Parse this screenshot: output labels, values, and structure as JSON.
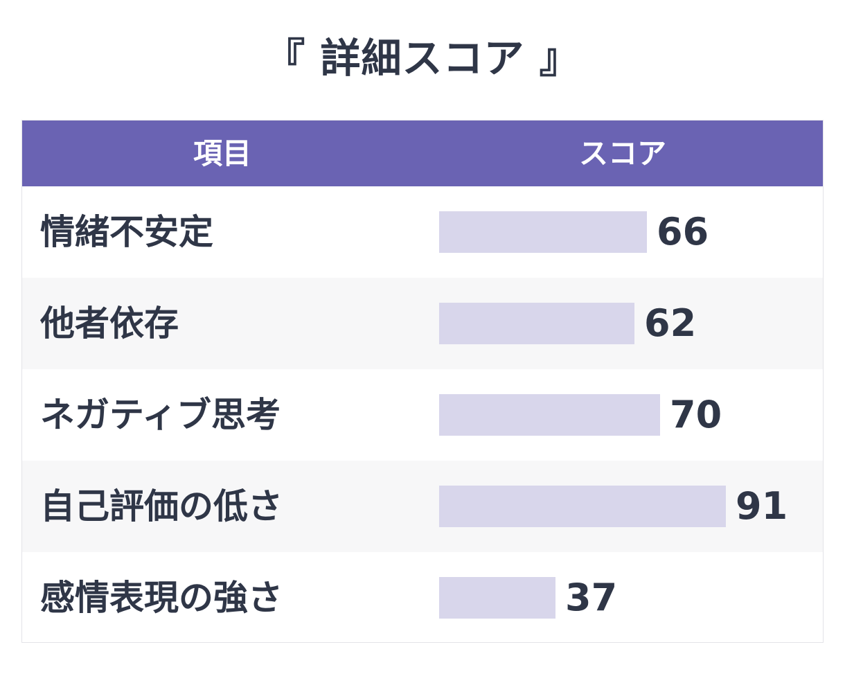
{
  "title": "『 詳細スコア 』",
  "table": {
    "header_item": "項目",
    "header_score": "スコア"
  },
  "colors": {
    "header_bg": "#6a63b3",
    "bar": "#d8d6eb",
    "text": "#2f3647",
    "row_alt": "#f7f7f8"
  },
  "chart_data": {
    "type": "bar",
    "title": "『 詳細スコア 』",
    "categories": [
      "情緒不安定",
      "他者依存",
      "ネガティブ思考",
      "自己評価の低さ",
      "感情表現の強さ"
    ],
    "values": [
      66,
      62,
      70,
      91,
      37
    ],
    "ylim": [
      0,
      100
    ],
    "orientation": "horizontal"
  }
}
